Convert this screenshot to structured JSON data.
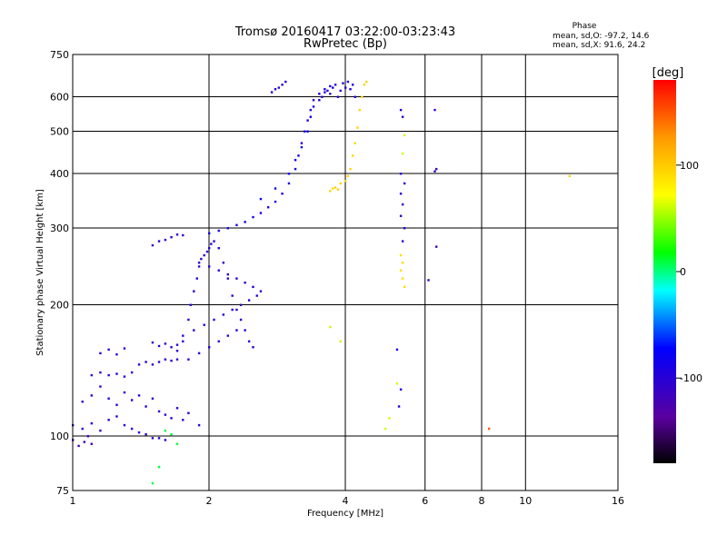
{
  "header": {
    "title": "Tromsø 20160417 03:22:00-03:23:43",
    "subtitle": "RwPretec (Bp)"
  },
  "phase_stats": {
    "heading": "Phase",
    "line_o": "mean, sd,O:  -97.2, 14.6",
    "line_x": "mean, sd,X:  91.6, 24.2"
  },
  "colorbar": {
    "label": "[deg]",
    "range": [
      -180,
      180
    ],
    "ticks": [
      100,
      0,
      -100
    ],
    "tick_labels": [
      "100",
      "0",
      "-100"
    ]
  },
  "chart_data": {
    "type": "scatter",
    "xlabel": "Frequency [MHz]",
    "ylabel": "Stationary phase Virtual Height [km]",
    "xscale": "log",
    "yscale": "log",
    "xlim": [
      1,
      16
    ],
    "ylim": [
      75,
      750
    ],
    "xticks": [
      1,
      2,
      4,
      6,
      8,
      10,
      16
    ],
    "xtick_labels": [
      "1",
      "2",
      "4",
      "6",
      "8",
      "10",
      "16"
    ],
    "yticks": [
      75,
      100,
      200,
      300,
      400,
      500,
      600,
      750
    ],
    "ytick_labels": [
      "75",
      "100",
      "200",
      "300",
      "400",
      "500",
      "600",
      "750"
    ],
    "grid": true,
    "color_by": "phase [deg]",
    "traces": [
      {
        "points": [
          [
            1.0,
            106
          ],
          [
            1.05,
            104
          ],
          [
            1.1,
            107
          ],
          [
            1.15,
            103
          ],
          [
            1.2,
            109
          ],
          [
            1.25,
            111
          ],
          [
            1.3,
            106
          ],
          [
            1.35,
            104
          ],
          [
            1.4,
            102
          ],
          [
            1.45,
            101
          ],
          [
            1.5,
            99
          ],
          [
            1.55,
            99
          ],
          [
            1.6,
            98
          ]
        ],
        "phase": -100
      },
      {
        "points": [
          [
            1.0,
            98
          ],
          [
            1.03,
            95
          ],
          [
            1.06,
            97
          ],
          [
            1.1,
            96
          ],
          [
            1.08,
            100
          ]
        ],
        "phase": -115
      },
      {
        "points": [
          [
            1.1,
            138
          ],
          [
            1.15,
            140
          ],
          [
            1.2,
            138
          ],
          [
            1.25,
            139
          ],
          [
            1.3,
            137
          ],
          [
            1.35,
            140
          ],
          [
            1.4,
            146
          ],
          [
            1.45,
            148
          ],
          [
            1.5,
            146
          ],
          [
            1.55,
            148
          ],
          [
            1.6,
            150
          ],
          [
            1.65,
            149
          ],
          [
            1.7,
            150
          ]
        ],
        "phase": -100
      },
      {
        "points": [
          [
            1.05,
            120
          ],
          [
            1.1,
            124
          ],
          [
            1.15,
            130
          ],
          [
            1.2,
            122
          ],
          [
            1.25,
            118
          ],
          [
            1.3,
            126
          ],
          [
            1.35,
            121
          ],
          [
            1.4,
            124
          ],
          [
            1.45,
            117
          ],
          [
            1.5,
            122
          ],
          [
            1.55,
            114
          ],
          [
            1.6,
            112
          ],
          [
            1.65,
            110
          ],
          [
            1.7,
            116
          ],
          [
            1.75,
            109
          ],
          [
            1.8,
            113
          ],
          [
            1.9,
            106
          ]
        ],
        "phase": -100
      },
      {
        "points": [
          [
            1.15,
            155
          ],
          [
            1.2,
            158
          ],
          [
            1.25,
            154
          ],
          [
            1.3,
            159
          ],
          [
            1.5,
            164
          ],
          [
            1.55,
            161
          ],
          [
            1.6,
            163
          ],
          [
            1.65,
            160
          ],
          [
            1.7,
            162
          ],
          [
            1.75,
            165
          ]
        ],
        "phase": -100
      },
      {
        "points": [
          [
            1.7,
            157
          ],
          [
            1.75,
            170
          ],
          [
            1.8,
            185
          ],
          [
            1.82,
            200
          ],
          [
            1.85,
            215
          ],
          [
            1.88,
            230
          ],
          [
            1.9,
            245
          ],
          [
            1.92,
            255
          ],
          [
            1.95,
            260
          ],
          [
            1.98,
            265
          ],
          [
            2.0,
            270
          ],
          [
            2.02,
            276
          ],
          [
            2.05,
            280
          ],
          [
            2.1,
            270
          ],
          [
            2.15,
            250
          ],
          [
            2.2,
            230
          ],
          [
            2.25,
            210
          ],
          [
            2.3,
            195
          ],
          [
            2.35,
            185
          ],
          [
            2.4,
            175
          ],
          [
            2.45,
            165
          ],
          [
            2.5,
            160
          ]
        ],
        "phase": -100
      },
      {
        "points": [
          [
            1.8,
            150
          ],
          [
            1.9,
            155
          ],
          [
            2.0,
            160
          ],
          [
            2.1,
            165
          ],
          [
            2.2,
            170
          ],
          [
            2.3,
            175
          ],
          [
            1.85,
            175
          ],
          [
            1.95,
            180
          ],
          [
            2.05,
            185
          ],
          [
            2.15,
            190
          ],
          [
            2.25,
            195
          ],
          [
            2.35,
            200
          ],
          [
            2.45,
            205
          ],
          [
            2.55,
            210
          ],
          [
            2.6,
            215
          ],
          [
            2.5,
            220
          ],
          [
            2.4,
            225
          ],
          [
            2.3,
            230
          ],
          [
            2.2,
            235
          ],
          [
            2.1,
            240
          ],
          [
            2.0,
            245
          ],
          [
            1.9,
            250
          ]
        ],
        "phase": -100
      },
      {
        "points": [
          [
            1.5,
            274
          ],
          [
            1.55,
            280
          ],
          [
            1.6,
            282
          ],
          [
            1.65,
            286
          ],
          [
            1.7,
            290
          ],
          [
            1.75,
            289
          ]
        ],
        "phase": -100
      },
      {
        "points": [
          [
            2.0,
            292
          ],
          [
            2.1,
            296
          ],
          [
            2.2,
            300
          ],
          [
            2.3,
            305
          ],
          [
            2.4,
            310
          ],
          [
            2.5,
            318
          ],
          [
            2.6,
            325
          ],
          [
            2.7,
            335
          ],
          [
            2.8,
            345
          ],
          [
            2.9,
            360
          ],
          [
            3.0,
            380
          ],
          [
            3.1,
            410
          ],
          [
            3.15,
            440
          ],
          [
            3.2,
            470
          ],
          [
            3.25,
            500
          ],
          [
            3.3,
            530
          ],
          [
            3.35,
            560
          ],
          [
            3.4,
            590
          ],
          [
            3.5,
            610
          ],
          [
            3.6,
            625
          ],
          [
            3.7,
            635
          ]
        ],
        "phase": -90
      },
      {
        "points": [
          [
            2.6,
            350
          ],
          [
            2.8,
            370
          ],
          [
            3.0,
            400
          ],
          [
            3.1,
            430
          ],
          [
            3.2,
            460
          ],
          [
            3.3,
            500
          ],
          [
            3.35,
            540
          ],
          [
            3.4,
            570
          ]
        ],
        "phase": -80
      },
      {
        "points": [
          [
            3.5,
            590
          ],
          [
            3.55,
            600
          ],
          [
            3.6,
            615
          ],
          [
            3.65,
            620
          ],
          [
            3.7,
            610
          ],
          [
            3.75,
            630
          ],
          [
            3.8,
            640
          ],
          [
            3.85,
            600
          ],
          [
            3.9,
            620
          ],
          [
            3.95,
            645
          ],
          [
            4.0,
            630
          ],
          [
            4.05,
            650
          ],
          [
            4.1,
            625
          ],
          [
            4.15,
            640
          ],
          [
            4.2,
            600
          ]
        ],
        "phase": -95
      },
      {
        "points": [
          [
            2.75,
            615
          ],
          [
            2.8,
            625
          ],
          [
            2.85,
            630
          ],
          [
            2.9,
            640
          ],
          [
            2.95,
            650
          ]
        ],
        "phase": -100
      },
      {
        "points": [
          [
            3.7,
            365
          ],
          [
            3.75,
            370
          ],
          [
            3.8,
            372
          ],
          [
            3.85,
            368
          ],
          [
            3.9,
            380
          ],
          [
            4.0,
            385
          ],
          [
            4.05,
            395
          ],
          [
            4.1,
            410
          ],
          [
            4.15,
            440
          ],
          [
            4.2,
            470
          ],
          [
            4.25,
            510
          ],
          [
            4.3,
            560
          ],
          [
            4.35,
            600
          ],
          [
            4.4,
            640
          ],
          [
            4.45,
            650
          ]
        ],
        "phase": 95
      },
      {
        "points": [
          [
            5.3,
            560
          ],
          [
            5.35,
            540
          ],
          [
            5.3,
            400
          ],
          [
            5.4,
            380
          ],
          [
            5.3,
            360
          ],
          [
            5.35,
            340
          ],
          [
            5.3,
            320
          ],
          [
            5.4,
            300
          ],
          [
            5.35,
            280
          ]
        ],
        "phase": -100
      },
      {
        "points": [
          [
            5.3,
            260
          ],
          [
            5.35,
            250
          ],
          [
            5.3,
            240
          ],
          [
            5.35,
            230
          ],
          [
            5.4,
            220
          ]
        ],
        "phase": 90
      },
      {
        "points": [
          [
            6.3,
            560
          ],
          [
            6.35,
            410
          ],
          [
            6.3,
            405
          ],
          [
            6.1,
            228
          ],
          [
            6.35,
            272
          ]
        ],
        "phase": -110
      },
      {
        "points": [
          [
            5.2,
            158
          ],
          [
            5.3,
            128
          ],
          [
            5.25,
            117
          ]
        ],
        "phase": -90
      },
      {
        "points": [
          [
            1.6,
            103
          ],
          [
            1.65,
            101
          ],
          [
            1.55,
            85
          ],
          [
            1.7,
            96
          ],
          [
            1.5,
            78
          ]
        ],
        "phase": 10
      },
      {
        "points": [
          [
            8.3,
            104
          ]
        ],
        "phase": 150
      },
      {
        "points": [
          [
            12.5,
            395
          ]
        ],
        "phase": 95
      },
      {
        "points": [
          [
            5.4,
            490
          ],
          [
            5.35,
            445
          ],
          [
            5.2,
            132
          ],
          [
            3.7,
            178
          ],
          [
            3.9,
            165
          ],
          [
            4.9,
            104
          ],
          [
            5.0,
            110
          ]
        ],
        "phase": 60
      }
    ]
  }
}
